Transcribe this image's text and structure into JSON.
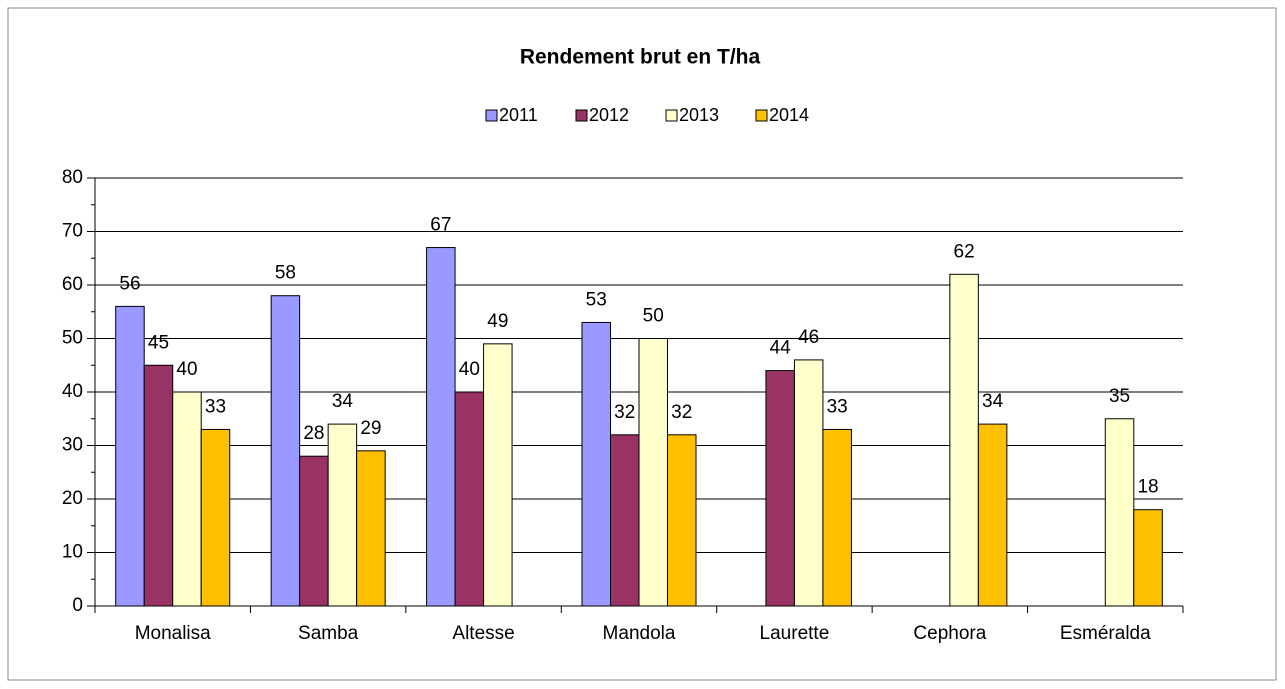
{
  "chart_data": {
    "type": "bar",
    "title": "Rendement brut en T/ha",
    "categories": [
      "Monalisa",
      "Samba",
      "Altesse",
      "Mandola",
      "Laurette",
      "Cephora",
      "Esméralda"
    ],
    "series": [
      {
        "name": "2011",
        "color": "#9999ff",
        "values": [
          56,
          58,
          67,
          53,
          null,
          null,
          null
        ]
      },
      {
        "name": "2012",
        "color": "#993366",
        "values": [
          45,
          28,
          40,
          32,
          44,
          null,
          null
        ]
      },
      {
        "name": "2013",
        "color": "#ffffcc",
        "values": [
          40,
          34,
          49,
          50,
          46,
          62,
          35
        ]
      },
      {
        "name": "2014",
        "color": "#ffc000",
        "values": [
          33,
          29,
          null,
          32,
          33,
          34,
          18
        ]
      }
    ],
    "ylim": [
      0,
      80
    ],
    "yticks": [
      0,
      10,
      20,
      30,
      40,
      50,
      60,
      70,
      80
    ],
    "grid": true,
    "legend": "top"
  }
}
